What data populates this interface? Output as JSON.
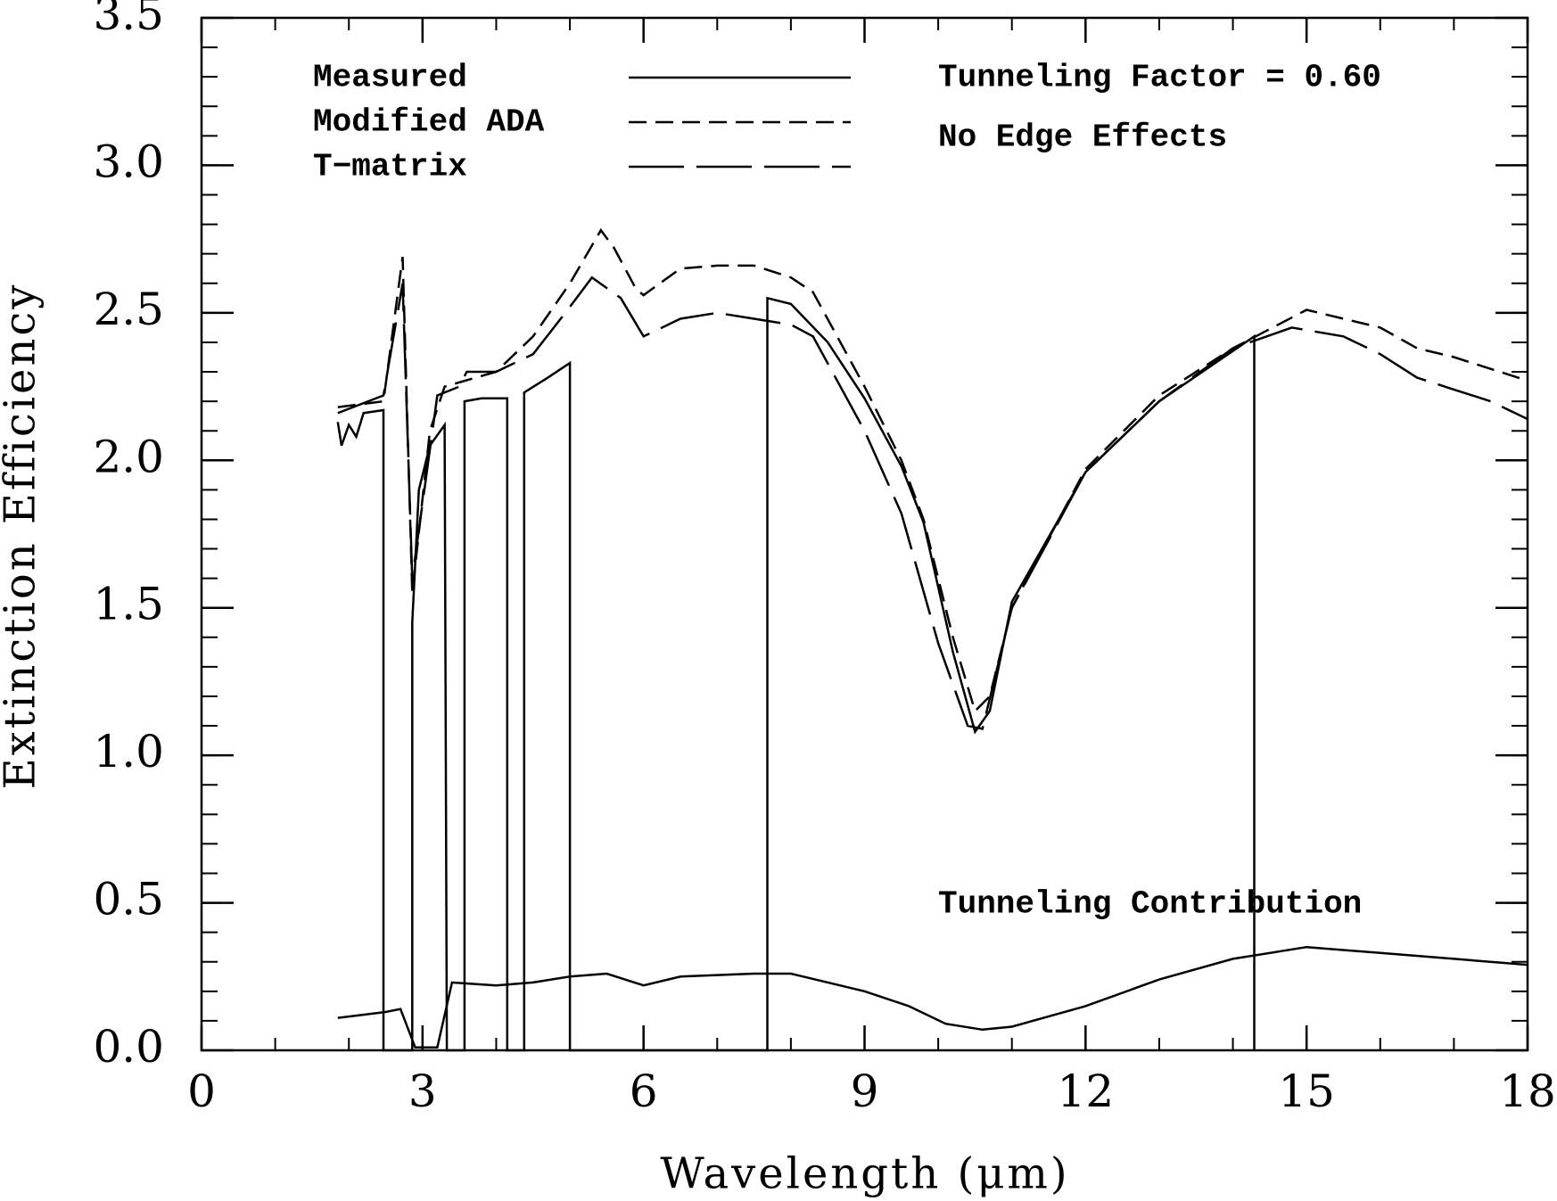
{
  "chart_data": {
    "type": "line",
    "xlabel": "Wavelength (μm)",
    "ylabel": "Extinction Efficiency",
    "xlim": [
      0,
      18
    ],
    "ylim": [
      0,
      3.5
    ],
    "xticks": [
      0,
      3,
      6,
      9,
      12,
      15,
      18
    ],
    "yticks": [
      {
        "value": 0,
        "label": "0.0"
      },
      0.5,
      {
        "value": 1,
        "label": "1.0"
      },
      1.5,
      {
        "value": 2,
        "label": "2.0"
      },
      2.5,
      {
        "value": 3,
        "label": "3.0"
      },
      3.5
    ],
    "xminor": 1,
    "yminor": 0.1,
    "annotations": [
      "Tunneling Factor = 0.60",
      "No Edge Effects"
    ],
    "series": [
      {
        "name": "Measured",
        "color": "#000000",
        "dash": "solid",
        "x": [
          1.85,
          1.9,
          2.0,
          2.1,
          2.2,
          2.47,
          2.47,
          2.86,
          2.86,
          2.95,
          3.1,
          3.3,
          3.33,
          3.57,
          3.57,
          3.8,
          4.15,
          4.15,
          4.38,
          4.38,
          4.7,
          5.0,
          5.0,
          7.68,
          7.68,
          8.0,
          8.5,
          9.0,
          9.5,
          9.8,
          10.2,
          10.5,
          10.7,
          11.0,
          12.0,
          13.0,
          14.29,
          14.29
        ],
        "values": [
          2.13,
          2.05,
          2.12,
          2.08,
          2.16,
          2.17,
          0,
          0,
          1.45,
          1.9,
          2.05,
          2.12,
          0,
          0,
          2.2,
          2.21,
          2.21,
          0,
          0,
          2.23,
          2.28,
          2.33,
          0,
          0,
          2.55,
          2.53,
          2.4,
          2.21,
          1.98,
          1.79,
          1.35,
          1.08,
          1.15,
          1.52,
          1.96,
          2.2,
          2.42,
          0
        ]
      },
      {
        "name": "Modified ADA",
        "color": "#000000",
        "dash": "dashed",
        "x": [
          1.85,
          2.47,
          2.73,
          2.86,
          3.1,
          3.3,
          4.0,
          4.5,
          5.0,
          5.42,
          5.6,
          5.9,
          6.0,
          6.5,
          7.0,
          7.5,
          8.0,
          8.3,
          9.0,
          9.5,
          9.8,
          10.2,
          10.5,
          10.7,
          11.0,
          12.0,
          13.0,
          14.0,
          15.0,
          16.0,
          16.5,
          17.0,
          18.0
        ],
        "values": [
          2.18,
          2.2,
          2.69,
          1.55,
          2.1,
          2.25,
          2.3,
          2.42,
          2.6,
          2.78,
          2.72,
          2.58,
          2.56,
          2.65,
          2.66,
          2.66,
          2.62,
          2.57,
          2.25,
          2.0,
          1.8,
          1.4,
          1.15,
          1.2,
          1.5,
          1.97,
          2.22,
          2.38,
          2.51,
          2.45,
          2.38,
          2.35,
          2.27
        ]
      },
      {
        "name": "T−matrix",
        "color": "#000000",
        "dash": "longdash",
        "x": [
          1.85,
          2.47,
          2.73,
          2.86,
          3.2,
          3.5,
          3.6,
          4.0,
          4.5,
          5.0,
          5.3,
          5.69,
          6.0,
          6.5,
          7.0,
          7.5,
          8.0,
          8.3,
          9.0,
          9.5,
          10.0,
          10.4,
          10.6,
          11.0,
          12.0,
          13.0,
          14.0,
          14.8,
          15.5,
          16.0,
          16.5,
          17.0,
          17.5,
          18.0
        ],
        "values": [
          2.16,
          2.22,
          2.6,
          1.6,
          2.22,
          2.25,
          2.3,
          2.3,
          2.36,
          2.52,
          2.62,
          2.55,
          2.42,
          2.48,
          2.5,
          2.48,
          2.46,
          2.42,
          2.1,
          1.82,
          1.38,
          1.1,
          1.09,
          1.5,
          1.96,
          2.2,
          2.38,
          2.45,
          2.42,
          2.36,
          2.28,
          2.24,
          2.2,
          2.14
        ]
      },
      {
        "name": "Tunneling Contribution",
        "color": "#000000",
        "dash": "solid",
        "legend": false,
        "x": [
          1.85,
          2.5,
          2.7,
          2.9,
          3.2,
          3.4,
          4.0,
          4.5,
          5.0,
          5.5,
          6.0,
          6.5,
          7.5,
          8.0,
          9.0,
          9.6,
          10.1,
          10.6,
          11.0,
          12.0,
          13.0,
          14.0,
          15.0,
          16.0,
          17.0,
          18.0
        ],
        "values": [
          0.11,
          0.13,
          0.14,
          0.01,
          0.01,
          0.23,
          0.22,
          0.23,
          0.25,
          0.26,
          0.22,
          0.25,
          0.26,
          0.26,
          0.2,
          0.15,
          0.09,
          0.07,
          0.08,
          0.15,
          0.24,
          0.31,
          0.35,
          0.33,
          0.31,
          0.29
        ]
      }
    ]
  }
}
